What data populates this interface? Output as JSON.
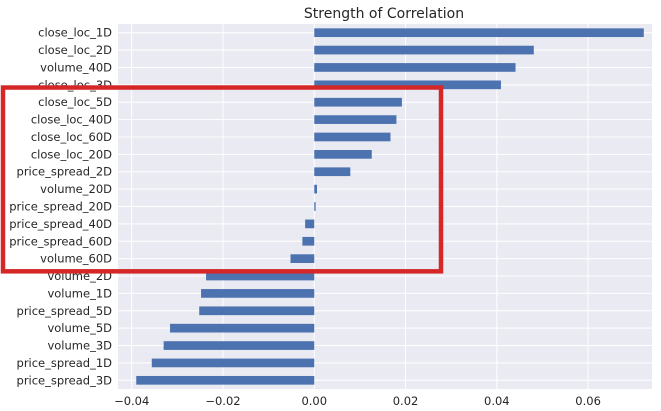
{
  "chart_data": {
    "type": "bar",
    "orientation": "horizontal",
    "title": "Strength of Correlation",
    "xlabel": "",
    "ylabel": "",
    "xlim": [
      -0.043,
      0.074
    ],
    "xticks": [
      -0.04,
      -0.02,
      0.0,
      0.02,
      0.04,
      0.06
    ],
    "xtick_labels": [
      "−0.04",
      "−0.02",
      "0.00",
      "0.02",
      "0.04",
      "0.06"
    ],
    "grid": true,
    "bar_color": "#4c72b0",
    "background_color": "#eaeaf2",
    "categories": [
      "close_loc_1D",
      "close_loc_2D",
      "volume_40D",
      "close_loc_3D",
      "close_loc_5D",
      "close_loc_40D",
      "close_loc_60D",
      "close_loc_20D",
      "price_spread_2D",
      "volume_20D",
      "price_spread_20D",
      "price_spread_40D",
      "price_spread_60D",
      "volume_60D",
      "volume_2D",
      "volume_1D",
      "price_spread_5D",
      "volume_5D",
      "volume_3D",
      "price_spread_1D",
      "price_spread_3D"
    ],
    "values": [
      0.0722,
      0.0481,
      0.0441,
      0.0409,
      0.0192,
      0.018,
      0.0167,
      0.0126,
      0.0079,
      0.0006,
      0.0003,
      -0.002,
      -0.0026,
      -0.0052,
      -0.0237,
      -0.0248,
      -0.0252,
      -0.0316,
      -0.033,
      -0.0356,
      -0.039
    ],
    "highlight": {
      "color": "#d62728",
      "from_category": "close_loc_5D",
      "to_category": "volume_60D"
    }
  }
}
